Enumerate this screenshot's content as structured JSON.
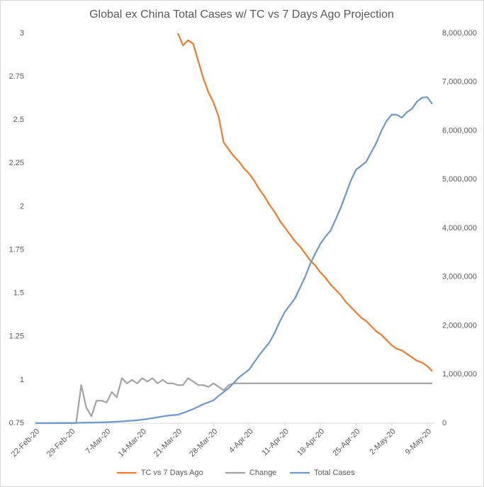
{
  "chart_data": {
    "type": "line",
    "title": "Global ex China Total Cases w/ TC vs 7 Days Ago Projection",
    "categories": [
      "22-Feb-20",
      null,
      null,
      null,
      null,
      null,
      null,
      "29-Feb-20",
      null,
      null,
      null,
      null,
      null,
      null,
      "7-Mar-20",
      null,
      null,
      null,
      null,
      null,
      null,
      "14-Mar-20",
      null,
      null,
      null,
      null,
      null,
      null,
      "21-Mar-20",
      null,
      null,
      null,
      null,
      null,
      null,
      "28-Mar-20",
      null,
      null,
      null,
      null,
      null,
      null,
      "4-Apr-20",
      null,
      null,
      null,
      null,
      null,
      null,
      "11-Apr-20",
      null,
      null,
      null,
      null,
      null,
      null,
      "18-Apr-20",
      null,
      null,
      null,
      null,
      null,
      null,
      "25-Apr-20",
      null,
      null,
      null,
      null,
      null,
      null,
      "2-May-20",
      null,
      null,
      null,
      null,
      null,
      null,
      "9-May-20",
      null
    ],
    "series": [
      {
        "name": "TC vs 7 Days Ago",
        "color": "#ed7d31",
        "axis": "y",
        "values": [
          null,
          null,
          null,
          null,
          null,
          null,
          null,
          null,
          null,
          null,
          null,
          null,
          null,
          null,
          null,
          null,
          null,
          null,
          null,
          null,
          null,
          null,
          null,
          null,
          null,
          null,
          null,
          null,
          3.0,
          2.93,
          2.96,
          2.94,
          2.84,
          2.74,
          2.66,
          2.6,
          2.52,
          2.37,
          2.33,
          2.29,
          2.26,
          2.22,
          2.19,
          2.15,
          2.1,
          2.06,
          2.01,
          1.97,
          1.92,
          1.88,
          1.84,
          1.8,
          1.77,
          1.73,
          1.69,
          1.66,
          1.62,
          1.59,
          1.55,
          1.52,
          1.49,
          1.45,
          1.42,
          1.39,
          1.36,
          1.34,
          1.31,
          1.28,
          1.26,
          1.23,
          1.2,
          1.18,
          1.17,
          1.15,
          1.13,
          1.11,
          1.1,
          1.08,
          1.05
        ]
      },
      {
        "name": "Change",
        "color": "#a5a5a5",
        "axis": "y",
        "values": [
          0.75,
          0.75,
          0.75,
          0.75,
          0.75,
          0.75,
          0.75,
          0.75,
          0.75,
          0.97,
          0.84,
          0.79,
          0.88,
          0.88,
          0.87,
          0.93,
          0.9,
          1.01,
          0.98,
          1.0,
          0.98,
          1.01,
          0.99,
          1.01,
          0.98,
          1.0,
          0.98,
          0.98,
          0.97,
          0.97,
          1.01,
          0.99,
          0.97,
          0.97,
          0.96,
          0.98,
          0.96,
          0.94,
          0.97,
          0.98,
          0.98,
          0.98,
          0.98,
          0.98,
          0.98,
          0.98,
          0.98,
          0.98,
          0.98,
          0.98,
          0.98,
          0.98,
          0.98,
          0.98,
          0.98,
          0.98,
          0.98,
          0.98,
          0.98,
          0.98,
          0.98,
          0.98,
          0.98,
          0.98,
          0.98,
          0.98,
          0.98,
          0.98,
          0.98,
          0.98,
          0.98,
          0.98,
          0.98,
          0.98,
          0.98,
          0.98,
          0.98,
          0.98,
          0.98
        ]
      },
      {
        "name": "Total Cases",
        "color": "#6f9ac9",
        "axis": "y2",
        "values": [
          1500,
          1900,
          2300,
          2700,
          3200,
          3900,
          4700,
          5800,
          7100,
          8700,
          10500,
          12700,
          15200,
          18500,
          22000,
          26000,
          31000,
          37000,
          45000,
          52000,
          62000,
          75000,
          88000,
          103000,
          120000,
          140000,
          155000,
          165000,
          175000,
          210000,
          250000,
          290000,
          340000,
          390000,
          430000,
          470000,
          560000,
          640000,
          720000,
          830000,
          940000,
          1020000,
          1100000,
          1250000,
          1400000,
          1530000,
          1660000,
          1850000,
          2080000,
          2280000,
          2420000,
          2560000,
          2780000,
          3000000,
          3270000,
          3480000,
          3680000,
          3830000,
          3950000,
          4180000,
          4420000,
          4700000,
          4980000,
          5200000,
          5280000,
          5360000,
          5560000,
          5750000,
          6000000,
          6200000,
          6330000,
          6330000,
          6270000,
          6380000,
          6450000,
          6600000,
          6680000,
          6690000,
          6550000
        ]
      }
    ],
    "ylim": [
      0.75,
      3
    ],
    "yticks": [
      0.75,
      1,
      1.25,
      1.5,
      1.75,
      2,
      2.25,
      2.5,
      2.75,
      3
    ],
    "y2lim": [
      0,
      8000000
    ],
    "y2ticks": [
      {
        "value": 0,
        "label": "0"
      },
      {
        "value": 1000000,
        "label": "1,000,000"
      },
      {
        "value": 2000000,
        "label": "2,000,000"
      },
      {
        "value": 3000000,
        "label": "3,000,000"
      },
      {
        "value": 4000000,
        "label": "4,000,000"
      },
      {
        "value": 5000000,
        "label": "5,000,000"
      },
      {
        "value": 6000000,
        "label": "6,000,000"
      },
      {
        "value": 7000000,
        "label": "7,000,000"
      },
      {
        "value": 8000000,
        "label": "8,000,000"
      }
    ],
    "grid": false,
    "legend": "bottom"
  }
}
